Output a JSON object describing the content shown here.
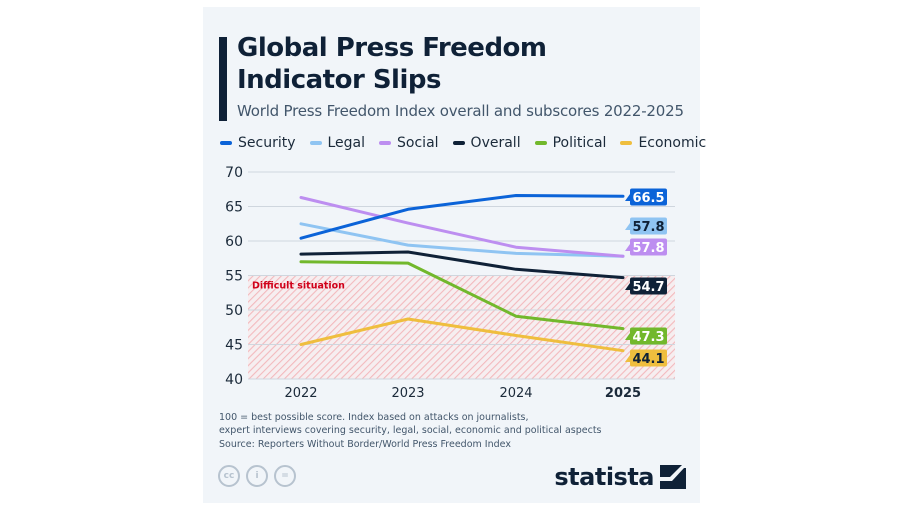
{
  "header": {
    "title_line1": "Global Press Freedom",
    "title_line2": "Indicator Slips",
    "subtitle": "World Press Freedom Index overall and subscores 2022-2025"
  },
  "colors": {
    "Security": "#0b63d8",
    "Legal": "#8fc4f2",
    "Social": "#bd8ef0",
    "Overall": "#0f2137",
    "Political": "#72b82c",
    "Economic": "#efbe3e",
    "zone_label": "#d0021b",
    "zone_hatch": "#f3b9bd"
  },
  "chart_data": {
    "type": "line",
    "title": "Global Press Freedom Indicator Slips",
    "subtitle": "World Press Freedom Index overall and subscores 2022-2025",
    "x": [
      "2022",
      "2023",
      "2024",
      "2025"
    ],
    "x_bold": "2025",
    "xlabel": "",
    "ylabel": "",
    "ylim": [
      40,
      70
    ],
    "yticks": [
      40,
      45,
      50,
      55,
      60,
      65,
      70
    ],
    "grid": true,
    "legend_position": "top",
    "series": [
      {
        "name": "Security",
        "values": [
          60.4,
          64.6,
          66.6,
          66.5
        ],
        "end_label": "66.5"
      },
      {
        "name": "Legal",
        "values": [
          62.5,
          59.4,
          58.2,
          57.8
        ],
        "end_label": "57.8"
      },
      {
        "name": "Social",
        "values": [
          66.3,
          62.6,
          59.1,
          57.8
        ],
        "end_label": "57.8"
      },
      {
        "name": "Overall",
        "values": [
          58.1,
          58.4,
          55.9,
          54.7
        ],
        "end_label": "54.7"
      },
      {
        "name": "Political",
        "values": [
          57.0,
          56.8,
          49.1,
          47.3
        ],
        "end_label": "47.3"
      },
      {
        "name": "Economic",
        "values": [
          45.0,
          48.7,
          46.3,
          44.1
        ],
        "end_label": "44.1"
      }
    ],
    "annotations": [
      {
        "text": "Difficult situation",
        "range": [
          40,
          55
        ]
      }
    ]
  },
  "footer": {
    "note_line1": "100 = best possible score. Index based on attacks on journalists,",
    "note_line2": "expert interviews covering security, legal, social, economic and political aspects",
    "source": "Source: Reporters Without Border/World Press Freedom Index",
    "cc_icons": [
      {
        "name": "cc-icon",
        "glyph": "cc"
      },
      {
        "name": "attribution-icon",
        "glyph": "i"
      },
      {
        "name": "no-derivatives-icon",
        "glyph": "="
      }
    ],
    "brand": "statista"
  }
}
